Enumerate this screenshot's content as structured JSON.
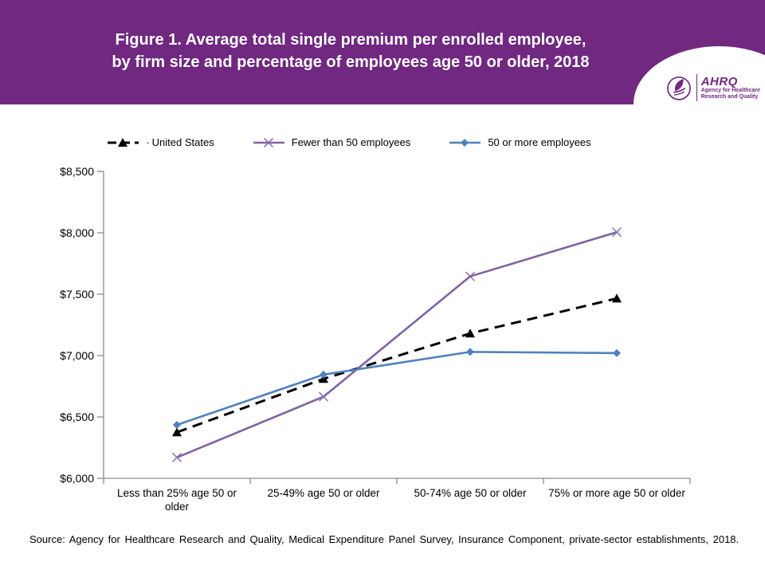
{
  "header": {
    "title_line1": "Figure 1. Average total single premium per enrolled employee,",
    "title_line2": "by firm size and percentage of employees age 50 or older, 2018",
    "background_color": "#702880",
    "logo": {
      "acronym": "AHRQ",
      "subtitle_line1": "Agency for Healthcare",
      "subtitle_line2": "Research and Quality"
    }
  },
  "chart_data": {
    "type": "line",
    "title": "Average total single premium per enrolled employee, by firm size and percentage of employees age 50 or older, 2018",
    "xlabel": "",
    "ylabel": "",
    "categories": [
      "Less than 25% age 50 or older",
      "25-49% age 50 or older",
      "50-74% age 50 or older",
      "75% or more age 50 or older"
    ],
    "series": [
      {
        "name": "United States",
        "legend_prefix": "·",
        "values": [
          6375,
          6810,
          7180,
          7465
        ],
        "color": "#000000",
        "dash": "13 8",
        "line_width": 3,
        "marker": "triangle"
      },
      {
        "name": "Fewer than 50 employees",
        "legend_prefix": "",
        "values": [
          6170,
          6665,
          7645,
          8005
        ],
        "color": "#8064A2",
        "dash": null,
        "line_width": 2.6,
        "marker": "x"
      },
      {
        "name": "50 or more employees",
        "legend_prefix": "",
        "values": [
          6435,
          6845,
          7030,
          7020
        ],
        "color": "#4F81BD",
        "dash": null,
        "line_width": 2.6,
        "marker": "diamond"
      }
    ],
    "ylim": [
      6000,
      8500
    ],
    "ytick_step": 500,
    "ytick_labels": [
      "$6,000",
      "$6,500",
      "$7,000",
      "$7,500",
      "$8,000",
      "$8,500"
    ],
    "axis_color": "#8C8C8C",
    "grid": false,
    "legend_position": "top"
  },
  "footer": {
    "source": "Source: Agency for Healthcare Research and Quality, Medical Expenditure Panel Survey, Insurance Component, private-sector establishments, 2018."
  }
}
